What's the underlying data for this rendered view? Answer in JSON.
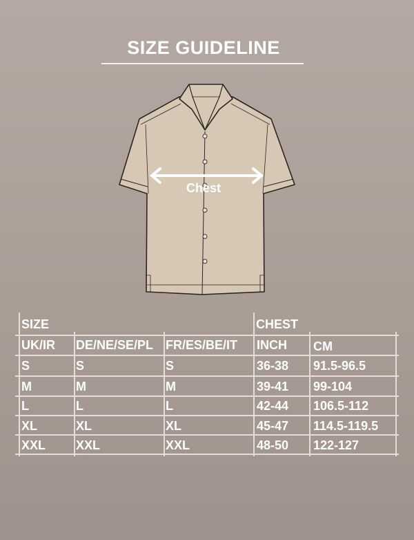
{
  "title": "SIZE GUIDELINE",
  "illustration": {
    "label": "Chest",
    "shirt_color": "#d6c8b5",
    "outline_color": "#2a2622"
  },
  "table": {
    "group_headers": {
      "size": "SIZE",
      "chest": "CHEST"
    },
    "columns": [
      "UK/IR",
      "DE/NE/SE/PL",
      "FR/ES/BE/IT",
      "INCH",
      "CM"
    ],
    "rows": [
      [
        "S",
        "S",
        "S",
        "36-38",
        "91.5-96.5"
      ],
      [
        "M",
        "M",
        "M",
        "39-41",
        "99-104"
      ],
      [
        "L",
        "L",
        "L",
        "42-44",
        "106.5-112"
      ],
      [
        "XL",
        "XL",
        "XL",
        "45-47",
        "114.5-119.5"
      ],
      [
        "XXL",
        "XXL",
        "XXL",
        "48-50",
        "122-127"
      ]
    ]
  }
}
